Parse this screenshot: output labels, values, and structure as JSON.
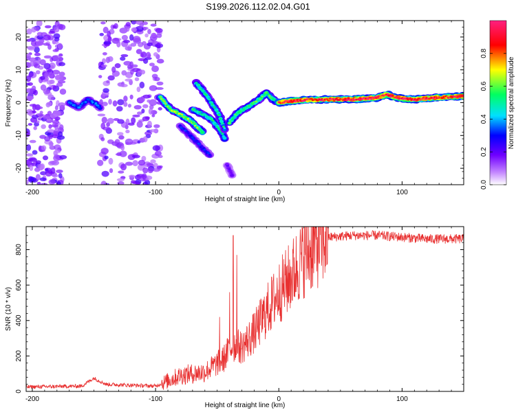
{
  "page_title": "S199.2026.112.02.04.G01",
  "chart_data": [
    {
      "type": "heatmap",
      "title": "S199.2026.112.02.04.G01",
      "xlabel": "Height of straight line (km)",
      "ylabel": "Frequency (Hz)",
      "xlim": [
        -205,
        150
      ],
      "ylim": [
        -25,
        25
      ],
      "x_ticks": [
        -200,
        -100,
        0,
        100
      ],
      "x_tick_labels": [
        "-200",
        "-100",
        "0",
        "100"
      ],
      "y_ticks": [
        -20,
        -10,
        0,
        10,
        20
      ],
      "y_tick_labels": [
        "-20",
        "-10",
        "0",
        "10",
        "20"
      ],
      "colorbar": {
        "label": "Normalized spectral amplitude",
        "range": [
          0.0,
          1.0
        ],
        "ticks": [
          0.0,
          0.2,
          0.4,
          0.6,
          0.8
        ],
        "tick_labels": [
          "0.0",
          "0.2",
          "0.4",
          "0.6",
          "0.8"
        ],
        "colors": [
          "#ffffff",
          "#8000ff",
          "#0000ff",
          "#00e0ff",
          "#00ff60",
          "#ffff00",
          "#ff0000",
          "#ff2080"
        ]
      },
      "noise_regions": [
        {
          "x_from": -205,
          "x_to": -175,
          "y_from": -25,
          "y_to": 25
        },
        {
          "x_from": -145,
          "x_to": -95,
          "y_from": -25,
          "y_to": 25
        }
      ],
      "tracks": [
        {
          "x": [
            -170,
            -162,
            -155,
            -148,
            -145
          ],
          "y": [
            0,
            -1.5,
            1,
            -0.5,
            -1.5
          ],
          "amp": 0.35
        },
        {
          "x": [
            -96,
            -88,
            -78,
            -70,
            -62
          ],
          "y": [
            1.5,
            -2,
            -4,
            -6,
            -9
          ],
          "amp": 0.6
        },
        {
          "x": [
            -80,
            -72,
            -64,
            -56
          ],
          "y": [
            -7,
            -10,
            -13,
            -16
          ],
          "amp": 0.3
        },
        {
          "x": [
            -70,
            -62,
            -55,
            -48,
            -44
          ],
          "y": [
            -2,
            -3.5,
            -5,
            -8,
            -11
          ],
          "amp": 0.5
        },
        {
          "x": [
            -67,
            -60,
            -53,
            -48,
            -44
          ],
          "y": [
            6,
            3,
            -1,
            -4,
            -8
          ],
          "amp": 0.5
        },
        {
          "x": [
            -42,
            -38
          ],
          "y": [
            -19,
            -22
          ],
          "amp": 0.2
        },
        {
          "x": [
            -40,
            -33,
            -24,
            -16,
            -10,
            -5,
            0
          ],
          "y": [
            -6,
            -3,
            -1,
            1,
            3,
            1,
            0
          ],
          "amp": 0.55
        },
        {
          "x": [
            0,
            10,
            20,
            40,
            60,
            80,
            88,
            95,
            110,
            125,
            150
          ],
          "y": [
            0,
            0.5,
            0.8,
            1,
            1,
            1.5,
            2.5,
            1.5,
            1,
            1.5,
            2
          ],
          "amp": 0.9
        }
      ]
    },
    {
      "type": "line",
      "xlabel": "Height of straight line (km)",
      "ylabel": "SNR (10 * v/v)",
      "xlim": [
        -205,
        150
      ],
      "ylim": [
        0,
        930
      ],
      "x_ticks": [
        -200,
        -100,
        0,
        100
      ],
      "x_tick_labels": [
        "-200",
        "-100",
        "0",
        "100"
      ],
      "y_ticks": [
        0,
        200,
        400,
        600,
        800
      ],
      "y_tick_labels": [
        "0",
        "200",
        "400",
        "600",
        "800"
      ],
      "color": "#e83030",
      "trend": {
        "x": [
          -205,
          -160,
          -150,
          -140,
          -100,
          -90,
          -80,
          -60,
          -45,
          -38,
          -30,
          -20,
          -10,
          0,
          10,
          20,
          30,
          40,
          60,
          80,
          100,
          120,
          150
        ],
        "y": [
          25,
          30,
          75,
          40,
          30,
          60,
          90,
          110,
          180,
          260,
          250,
          330,
          450,
          560,
          650,
          760,
          830,
          870,
          880,
          880,
          870,
          860,
          860
        ]
      },
      "spikes": [
        {
          "x": -37,
          "y": 880
        },
        {
          "x": -34,
          "y": 770
        },
        {
          "x": -48,
          "y": 420
        },
        {
          "x": -40,
          "y": 560
        }
      ]
    }
  ]
}
